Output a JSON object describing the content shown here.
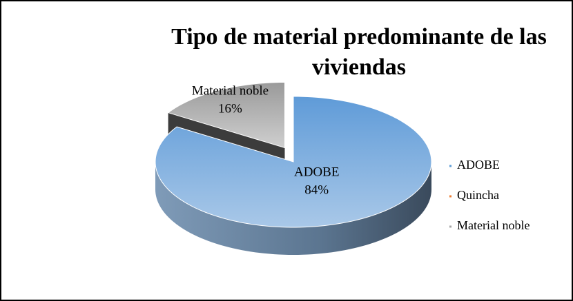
{
  "chart_data": {
    "type": "pie",
    "title": [
      "Tipo de material predominante de las",
      "viviendas"
    ],
    "categories": [
      "ADOBE",
      "Quincha",
      "Material noble"
    ],
    "values": [
      84,
      0,
      16
    ],
    "value_labels": [
      "84%",
      null,
      "16%"
    ],
    "colors": [
      "#5b9bd5",
      "#ed7d31",
      "#a5a5a5"
    ],
    "legend": "right"
  }
}
